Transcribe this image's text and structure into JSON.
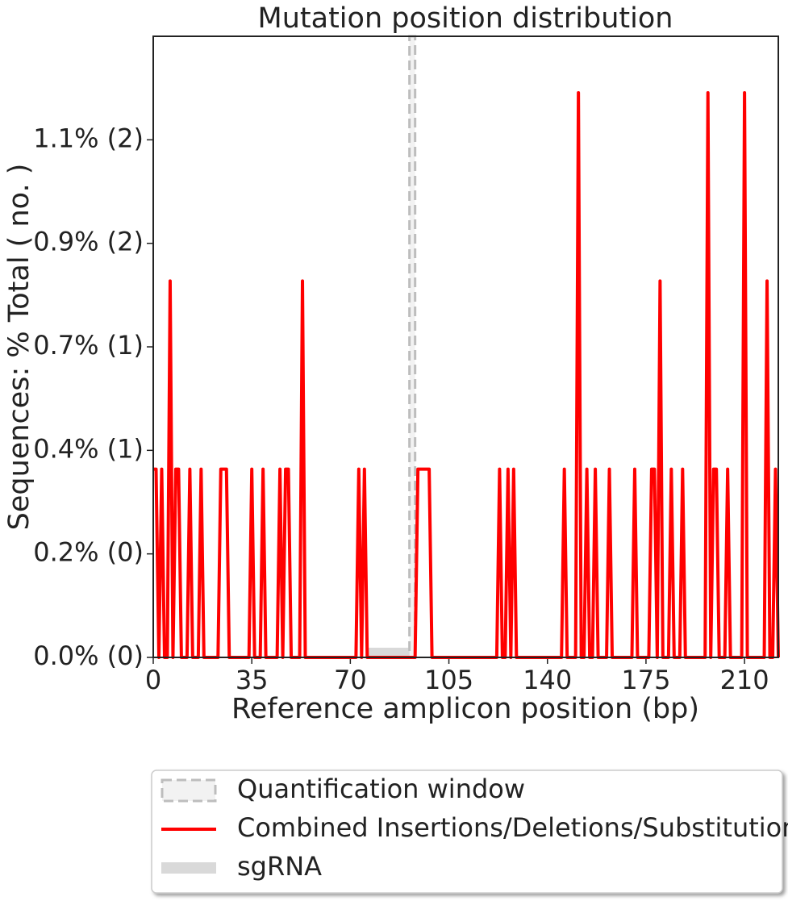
{
  "chart_data": {
    "type": "line",
    "title": "Mutation position distribution",
    "x_label": "Reference amplicon position (bp)",
    "y_label": "Sequences: % Total ( no. )",
    "x": [
      0,
      1,
      2,
      3,
      4,
      5,
      6,
      7,
      8,
      9,
      10,
      11,
      12,
      13,
      14,
      15,
      16,
      17,
      18,
      19,
      20,
      21,
      22,
      23,
      24,
      25,
      26,
      27,
      28,
      29,
      30,
      31,
      32,
      33,
      34,
      35,
      36,
      37,
      38,
      39,
      40,
      41,
      42,
      43,
      44,
      45,
      46,
      47,
      48,
      49,
      50,
      51,
      52,
      53,
      54,
      55,
      56,
      57,
      58,
      59,
      60,
      61,
      62,
      63,
      64,
      65,
      66,
      67,
      68,
      69,
      70,
      71,
      72,
      73,
      74,
      75,
      76,
      77,
      78,
      79,
      80,
      81,
      82,
      83,
      84,
      85,
      86,
      87,
      88,
      89,
      90,
      91,
      92,
      93,
      94,
      95,
      96,
      97,
      98,
      99,
      100,
      101,
      102,
      103,
      104,
      105,
      106,
      107,
      108,
      109,
      110,
      111,
      112,
      113,
      114,
      115,
      116,
      117,
      118,
      119,
      120,
      121,
      122,
      123,
      124,
      125,
      126,
      127,
      128,
      129,
      130,
      131,
      132,
      133,
      134,
      135,
      136,
      137,
      138,
      139,
      140,
      141,
      142,
      143,
      144,
      145,
      146,
      147,
      148,
      149,
      150,
      151,
      152,
      153,
      154,
      155,
      156,
      157,
      158,
      159,
      160,
      161,
      162,
      163,
      164,
      165,
      166,
      167,
      168,
      169,
      170,
      171,
      172,
      173,
      174,
      175,
      176,
      177,
      178,
      179,
      180,
      181,
      182,
      183,
      184,
      185,
      186,
      187,
      188,
      189,
      190,
      191,
      192,
      193,
      194,
      195,
      196,
      197,
      198,
      199,
      200,
      201,
      202,
      203,
      204,
      205,
      206,
      207,
      208,
      209,
      210,
      211,
      212,
      213,
      214,
      215,
      216,
      217,
      218,
      219,
      220,
      221,
      222
    ],
    "series": [
      {
        "name": "Combined Insertions/Deletions/Substitutions",
        "color": "#ff0000",
        "values": [
          0.4,
          0.4,
          0,
          0.4,
          0,
          0,
          0.8,
          0,
          0.4,
          0.4,
          0,
          0,
          0,
          0.4,
          0,
          0,
          0,
          0.4,
          0,
          0,
          0,
          0,
          0,
          0,
          0.4,
          0.4,
          0.4,
          0,
          0,
          0,
          0,
          0,
          0,
          0,
          0,
          0.4,
          0,
          0,
          0,
          0.4,
          0,
          0,
          0,
          0,
          0,
          0.4,
          0,
          0.4,
          0.4,
          0,
          0,
          0,
          0,
          0.8,
          0,
          0,
          0,
          0,
          0,
          0,
          0,
          0,
          0,
          0,
          0,
          0,
          0,
          0,
          0,
          0,
          0,
          0,
          0,
          0.4,
          0,
          0.4,
          0,
          0,
          0,
          0,
          0,
          0,
          0,
          0,
          0,
          0,
          0,
          0,
          0,
          0,
          0,
          0,
          0,
          0,
          0.4,
          0.4,
          0.4,
          0.4,
          0.4,
          0,
          0,
          0,
          0,
          0,
          0,
          0,
          0,
          0,
          0,
          0,
          0,
          0,
          0,
          0,
          0,
          0,
          0,
          0,
          0,
          0,
          0,
          0,
          0,
          0.4,
          0,
          0,
          0.4,
          0,
          0.4,
          0,
          0,
          0,
          0,
          0,
          0,
          0,
          0,
          0,
          0,
          0,
          0,
          0,
          0,
          0,
          0,
          0,
          0.4,
          0,
          0,
          0,
          0,
          1.2,
          0,
          0,
          0.4,
          0,
          0,
          0.4,
          0,
          0,
          0,
          0,
          0.4,
          0,
          0,
          0,
          0,
          0,
          0,
          0,
          0,
          0.4,
          0,
          0,
          0,
          0,
          0,
          0.4,
          0.4,
          0,
          0.8,
          0,
          0,
          0,
          0.4,
          0,
          0,
          0,
          0.4,
          0,
          0,
          0,
          0,
          0,
          0,
          0,
          0,
          1.2,
          0,
          0.4,
          0.4,
          0,
          0,
          0,
          0.4,
          0,
          0,
          0,
          0,
          0,
          1.2,
          0,
          0,
          0,
          0,
          0,
          0,
          0,
          0.8,
          0,
          0,
          0.4,
          0
        ]
      }
    ],
    "quantification_window": {
      "name": "Quantification window",
      "range": [
        91,
        93
      ],
      "color": "#bdbdbd"
    },
    "sgrna": {
      "name": "sgRNA",
      "range": [
        76,
        93
      ],
      "color": "#d9d9d9"
    },
    "xlim": [
      0,
      222
    ],
    "xticks": [
      0,
      35,
      70,
      105,
      140,
      175,
      210
    ],
    "ylim": [
      0,
      1.32
    ],
    "yticks": [
      {
        "value": 0,
        "label": "0.0% (0)"
      },
      {
        "value": 0.22,
        "label": "0.2% (0)"
      },
      {
        "value": 0.44,
        "label": "0.4% (1)"
      },
      {
        "value": 0.66,
        "label": "0.7% (1)"
      },
      {
        "value": 0.88,
        "label": "0.9% (2)"
      },
      {
        "value": 1.1,
        "label": "1.1% (2)"
      }
    ]
  }
}
